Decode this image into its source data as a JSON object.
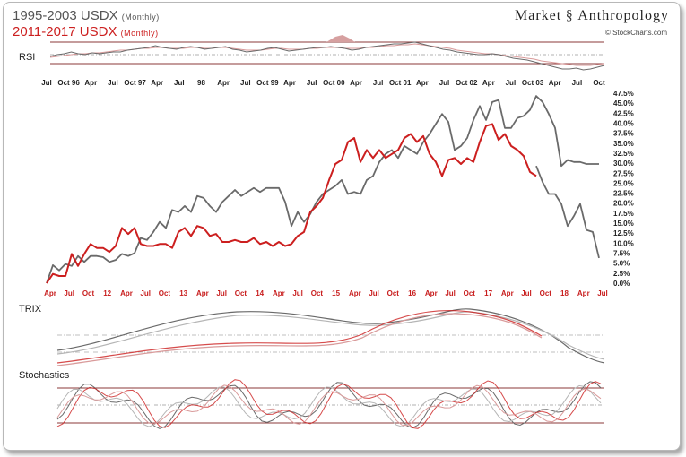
{
  "header": {
    "title_primary": "1995-2003 USDX",
    "title_primary_sub": "(Monthly)",
    "title_secondary": "2011-2017 USDX",
    "title_secondary_sub": "(Monthly)",
    "brand_left": "Market",
    "brand_right": "Anthropology",
    "credit": "© StockCharts.com"
  },
  "panels": {
    "rsi_label": "RSI",
    "trix_label": "TRIX",
    "stoch_label": "Stochastics"
  },
  "colors": {
    "series_1995": "#6a6a6a",
    "series_2011": "#cc1f1f",
    "osc_light_gray": "#b5b5b5",
    "osc_pink": "#d99a9a",
    "rsi_fill": "#d6a0a0",
    "band_line": "#8b3a3a"
  },
  "chart_data": {
    "type": "line",
    "top_axis_labels": [
      "Jul",
      "Oct 96",
      "Apr",
      "Jul",
      "Oct 97",
      "Apr",
      "Jul",
      "98",
      "Apr",
      "Jul",
      "Oct 99",
      "Apr",
      "Jul",
      "Oct 00",
      "Apr",
      "Jul",
      "Oct 01",
      "Apr",
      "Jul",
      "Oct 02",
      "Apr",
      "Jul",
      "Oct 03",
      "Apr",
      "Jul",
      "Oct"
    ],
    "bottom_axis_labels": [
      "Apr",
      "Jul",
      "Oct",
      "12",
      "Apr",
      "Jul",
      "Oct",
      "13",
      "Apr",
      "Jul",
      "Oct",
      "14",
      "Apr",
      "Jul",
      "Oct",
      "15",
      "Apr",
      "Jul",
      "Oct",
      "16",
      "Apr",
      "Jul",
      "Oct",
      "17",
      "Apr",
      "Jul",
      "Oct",
      "18",
      "Apr",
      "Jul"
    ],
    "y_ticks": [
      "0.0%",
      "2.5%",
      "5.0%",
      "7.5%",
      "10.0%",
      "12.5%",
      "15.0%",
      "17.5%",
      "20.0%",
      "22.5%",
      "25.0%",
      "27.5%",
      "30.0%",
      "32.5%",
      "35.0%",
      "37.5%",
      "40.0%",
      "42.5%",
      "45.0%",
      "47.5%"
    ],
    "ylim": [
      0,
      47.5
    ],
    "x_count": 89,
    "series": [
      {
        "name": "1995-2003 USDX",
        "values": [
          0,
          4.5,
          3.2,
          4.8,
          4.3,
          6.8,
          5.3,
          6.8,
          6.8,
          6.5,
          5.3,
          5.8,
          7.3,
          6.8,
          7.5,
          11.3,
          10.8,
          12.8,
          15.3,
          13.8,
          18.3,
          17.8,
          19.3,
          17.8,
          21.8,
          21.3,
          19.3,
          17.8,
          20.3,
          21.8,
          23.3,
          21.8,
          22.8,
          23.8,
          22.8,
          23.8,
          23.8,
          23.8,
          20.3,
          14.3,
          17.8,
          15.3,
          17.3,
          20.3,
          22.3,
          23.3,
          24.3,
          25.8,
          22.3,
          22.8,
          22.3,
          25.8,
          26.8,
          30.3,
          32.3,
          33.3,
          31.3,
          34.3,
          33.3,
          32.3,
          35.3,
          37.3,
          39.8,
          42.3,
          40.3,
          33.3,
          34.3,
          36.3,
          40.8,
          44.3,
          40.8,
          45.3,
          45.8,
          38.8,
          38.8,
          41.3,
          41.8,
          43.3,
          46.8,
          45.3,
          42.3,
          38.8,
          29.3,
          30.8,
          30.3,
          30.3,
          29.8,
          29.8,
          29.8
        ]
      },
      {
        "name": "2011-2017 USDX",
        "values": [
          0,
          2.3,
          1.8,
          1.8,
          7.3,
          4.3,
          7.3,
          9.8,
          8.8,
          8.8,
          7.8,
          9.3,
          13.8,
          12.3,
          13.8,
          9.8,
          9.3,
          9.3,
          9.8,
          9.8,
          8.8,
          12.8,
          13.8,
          11.8,
          14.3,
          13.8,
          11.8,
          12.3,
          10.3,
          10.3,
          10.8,
          10.3,
          10.3,
          11.3,
          9.8,
          10.3,
          9.3,
          10.3,
          9.3,
          9.8,
          11.8,
          12.8,
          17.8,
          19.3,
          21.3,
          25.8,
          29.8,
          30.8,
          35.3,
          36.3,
          30.3,
          33.3,
          31.3,
          33.3,
          31.3,
          32.3,
          33.3,
          36.3,
          37.3,
          35.3,
          36.8,
          32.3,
          30.3,
          26.8,
          30.8,
          31.3,
          29.8,
          31.3,
          30.3,
          35.3,
          39.3,
          39.8,
          35.8,
          37.3,
          34.3,
          33.3,
          31.8,
          27.8,
          26.8
        ]
      },
      {
        "name": "1995-2003 USDX (2003)",
        "values": [
          29.3,
          25.3,
          22.3,
          22.3,
          19.8,
          14.3,
          16.8,
          19.8,
          13.3,
          12.8,
          6.3
        ],
        "x_start": 78
      }
    ]
  }
}
